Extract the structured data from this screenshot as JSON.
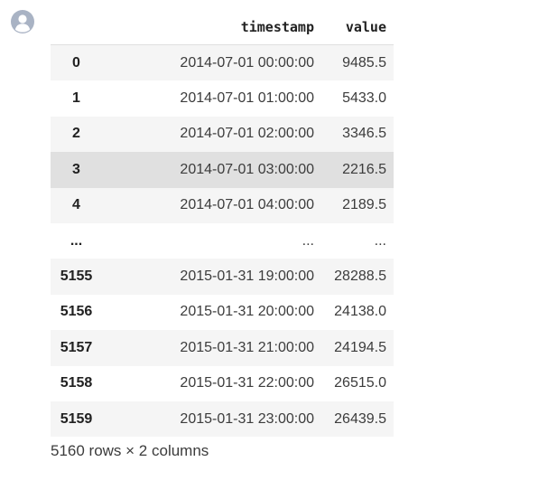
{
  "columns": {
    "timestamp": "timestamp",
    "value": "value"
  },
  "rows": [
    {
      "index": "0",
      "timestamp": "2014-07-01 00:00:00",
      "value": "9485.5"
    },
    {
      "index": "1",
      "timestamp": "2014-07-01 01:00:00",
      "value": "5433.0"
    },
    {
      "index": "2",
      "timestamp": "2014-07-01 02:00:00",
      "value": "3346.5"
    },
    {
      "index": "3",
      "timestamp": "2014-07-01 03:00:00",
      "value": "2216.5"
    },
    {
      "index": "4",
      "timestamp": "2014-07-01 04:00:00",
      "value": "2189.5"
    },
    {
      "index": "...",
      "timestamp": "...",
      "value": "..."
    },
    {
      "index": "5155",
      "timestamp": "2015-01-31 19:00:00",
      "value": "28288.5"
    },
    {
      "index": "5156",
      "timestamp": "2015-01-31 20:00:00",
      "value": "24138.0"
    },
    {
      "index": "5157",
      "timestamp": "2015-01-31 21:00:00",
      "value": "24194.5"
    },
    {
      "index": "5158",
      "timestamp": "2015-01-31 22:00:00",
      "value": "26515.0"
    },
    {
      "index": "5159",
      "timestamp": "2015-01-31 23:00:00",
      "value": "26439.5"
    }
  ],
  "footer": "5160 rows × 2 columns",
  "icons": {
    "avatar": "user-avatar-icon"
  },
  "colors": {
    "striped_row": "#f5f5f5",
    "hovered_row": "#e0e0e0",
    "avatar": "#a9b3c4"
  }
}
